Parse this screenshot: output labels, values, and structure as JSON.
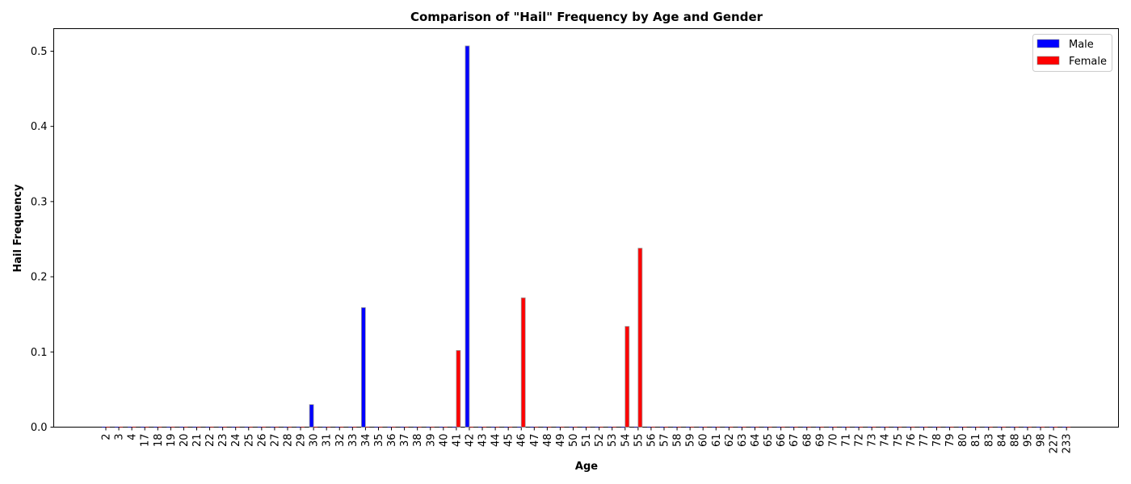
{
  "chart_data": {
    "type": "bar",
    "title": "Comparison of \"Hail\" Frequency by Age and Gender",
    "xlabel": "Age",
    "ylabel": "Hail Frequency",
    "ylim": [
      0,
      0.53
    ],
    "yticks": [
      "0.0",
      "0.1",
      "0.2",
      "0.3",
      "0.4",
      "0.5"
    ],
    "legend_position": "top-right",
    "categories": [
      "2",
      "3",
      "4",
      "17",
      "18",
      "19",
      "20",
      "21",
      "22",
      "23",
      "24",
      "25",
      "26",
      "27",
      "28",
      "29",
      "30",
      "31",
      "32",
      "33",
      "34",
      "35",
      "36",
      "37",
      "38",
      "39",
      "40",
      "41",
      "42",
      "43",
      "44",
      "45",
      "46",
      "47",
      "48",
      "49",
      "50",
      "51",
      "52",
      "53",
      "54",
      "55",
      "56",
      "57",
      "58",
      "59",
      "60",
      "61",
      "62",
      "63",
      "64",
      "65",
      "66",
      "67",
      "68",
      "69",
      "70",
      "71",
      "72",
      "73",
      "74",
      "75",
      "76",
      "77",
      "78",
      "79",
      "80",
      "81",
      "83",
      "84",
      "88",
      "95",
      "98",
      "227",
      "233"
    ],
    "series": [
      {
        "name": "Male",
        "color": "#0000ff",
        "values": [
          0,
          0,
          0,
          0,
          0,
          0,
          0,
          0,
          0,
          0,
          0,
          0,
          0,
          0,
          0,
          0,
          0.03,
          0,
          0,
          0,
          0.159,
          0,
          0,
          0,
          0,
          0,
          0,
          0,
          0.507,
          0,
          0,
          0,
          0,
          0,
          0,
          0,
          0,
          0,
          0,
          0,
          0,
          0,
          0,
          0,
          0,
          0,
          0,
          0,
          0,
          0,
          0,
          0,
          0,
          0,
          0,
          0,
          0,
          0,
          0,
          0,
          0,
          0,
          0,
          0,
          0,
          0,
          0,
          0,
          0,
          0,
          0,
          0,
          0,
          0,
          0
        ]
      },
      {
        "name": "Female",
        "color": "#ff0000",
        "values": [
          0,
          0,
          0,
          0,
          0,
          0,
          0,
          0,
          0,
          0,
          0,
          0,
          0,
          0,
          0,
          0,
          0,
          0,
          0,
          0,
          0,
          0,
          0,
          0,
          0,
          0,
          0,
          0.102,
          0,
          0,
          0,
          0,
          0.172,
          0,
          0,
          0,
          0,
          0,
          0,
          0,
          0.134,
          0.238,
          0,
          0,
          0,
          0,
          0,
          0,
          0,
          0,
          0,
          0,
          0,
          0,
          0,
          0,
          0,
          0,
          0,
          0,
          0,
          0,
          0,
          0,
          0,
          0,
          0,
          0,
          0,
          0,
          0,
          0,
          0,
          0,
          0
        ]
      }
    ]
  }
}
